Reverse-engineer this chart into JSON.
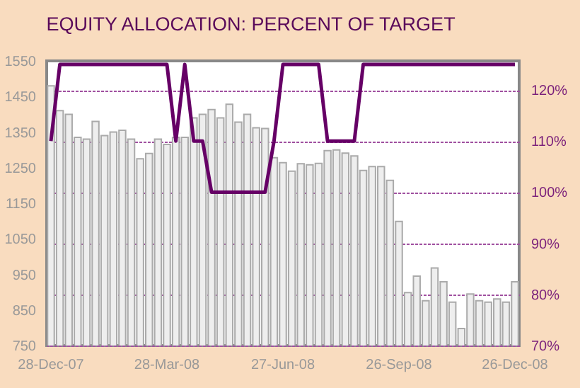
{
  "chart_data": {
    "type": "bar",
    "title": "EQUITY ALLOCATION: PERCENT OF TARGET",
    "categories": [
      "28-Dec-07",
      null,
      null,
      null,
      null,
      null,
      null,
      null,
      null,
      null,
      null,
      null,
      null,
      "28-Mar-08",
      null,
      null,
      null,
      null,
      null,
      null,
      null,
      null,
      null,
      null,
      null,
      null,
      "27-Jun-08",
      null,
      null,
      null,
      null,
      null,
      null,
      null,
      null,
      null,
      null,
      null,
      null,
      "26-Sep-08",
      null,
      null,
      null,
      null,
      null,
      null,
      null,
      null,
      null,
      null,
      null,
      null,
      "26-Dec-08"
    ],
    "series": [
      {
        "color": "#eeeeee",
        "values": [
          1480,
          1410,
          1400,
          1335,
          1330,
          1380,
          1340,
          1350,
          1355,
          1330,
          1275,
          1290,
          1330,
          1315,
          1335,
          1335,
          1390,
          1400,
          1413,
          1390,
          1428,
          1378,
          1400,
          1362,
          1360,
          1278,
          1264,
          1240,
          1261,
          1258,
          1262,
          1298,
          1300,
          1291,
          1283,
          1242,
          1253,
          1253,
          1214,
          1099,
          899,
          945,
          876,
          968,
          929,
          872,
          798,
          895,
          876,
          872,
          881,
          872,
          929
        ]
      },
      {
        "type": "line",
        "axis": "y2",
        "color": "#660066",
        "values": [
          110,
          125,
          125,
          125,
          125,
          125,
          125,
          125,
          125,
          125,
          125,
          125,
          125,
          125,
          110,
          125,
          110,
          110,
          100,
          100,
          100,
          100,
          100,
          100,
          100,
          110,
          125,
          125,
          125,
          125,
          125,
          110,
          110,
          110,
          110,
          125,
          125,
          125,
          125,
          125,
          125,
          125,
          125,
          125,
          125,
          125,
          125,
          125,
          125,
          125,
          125,
          125,
          125
        ]
      }
    ],
    "ylim": [
      750,
      1550
    ],
    "yticks": [
      750,
      850,
      950,
      1050,
      1150,
      1250,
      1350,
      1450,
      1550
    ],
    "y2lim": [
      70,
      125.7
    ],
    "y2ticks": [
      {
        "value": 70,
        "label": "70%"
      },
      {
        "value": 80,
        "label": "80%"
      },
      {
        "value": 90,
        "label": "90%"
      },
      {
        "value": 100,
        "label": "100%"
      },
      {
        "value": 110,
        "label": "110%"
      },
      {
        "value": 120,
        "label": "120%"
      }
    ],
    "grid": "y2",
    "marker": "none",
    "line_style": "solid"
  }
}
